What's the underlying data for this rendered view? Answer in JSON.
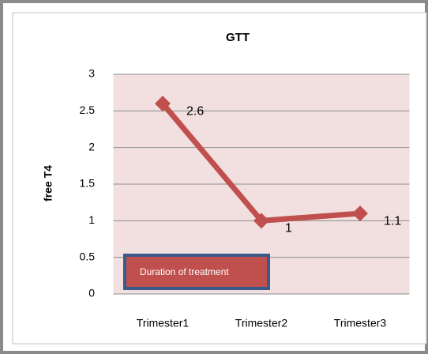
{
  "chart_data": {
    "type": "line",
    "title": "GTT",
    "y_label": "free T4",
    "categories": [
      "Trimester1",
      "Trimester2",
      "Trimester3"
    ],
    "values": [
      2.6,
      1,
      1.1
    ],
    "color": "#c0504d",
    "ylim": [
      0,
      3
    ],
    "yticks": [
      0,
      0.5,
      1,
      1.5,
      2,
      2.5,
      3
    ],
    "grid": true,
    "annotation": "Duration of treatment"
  }
}
